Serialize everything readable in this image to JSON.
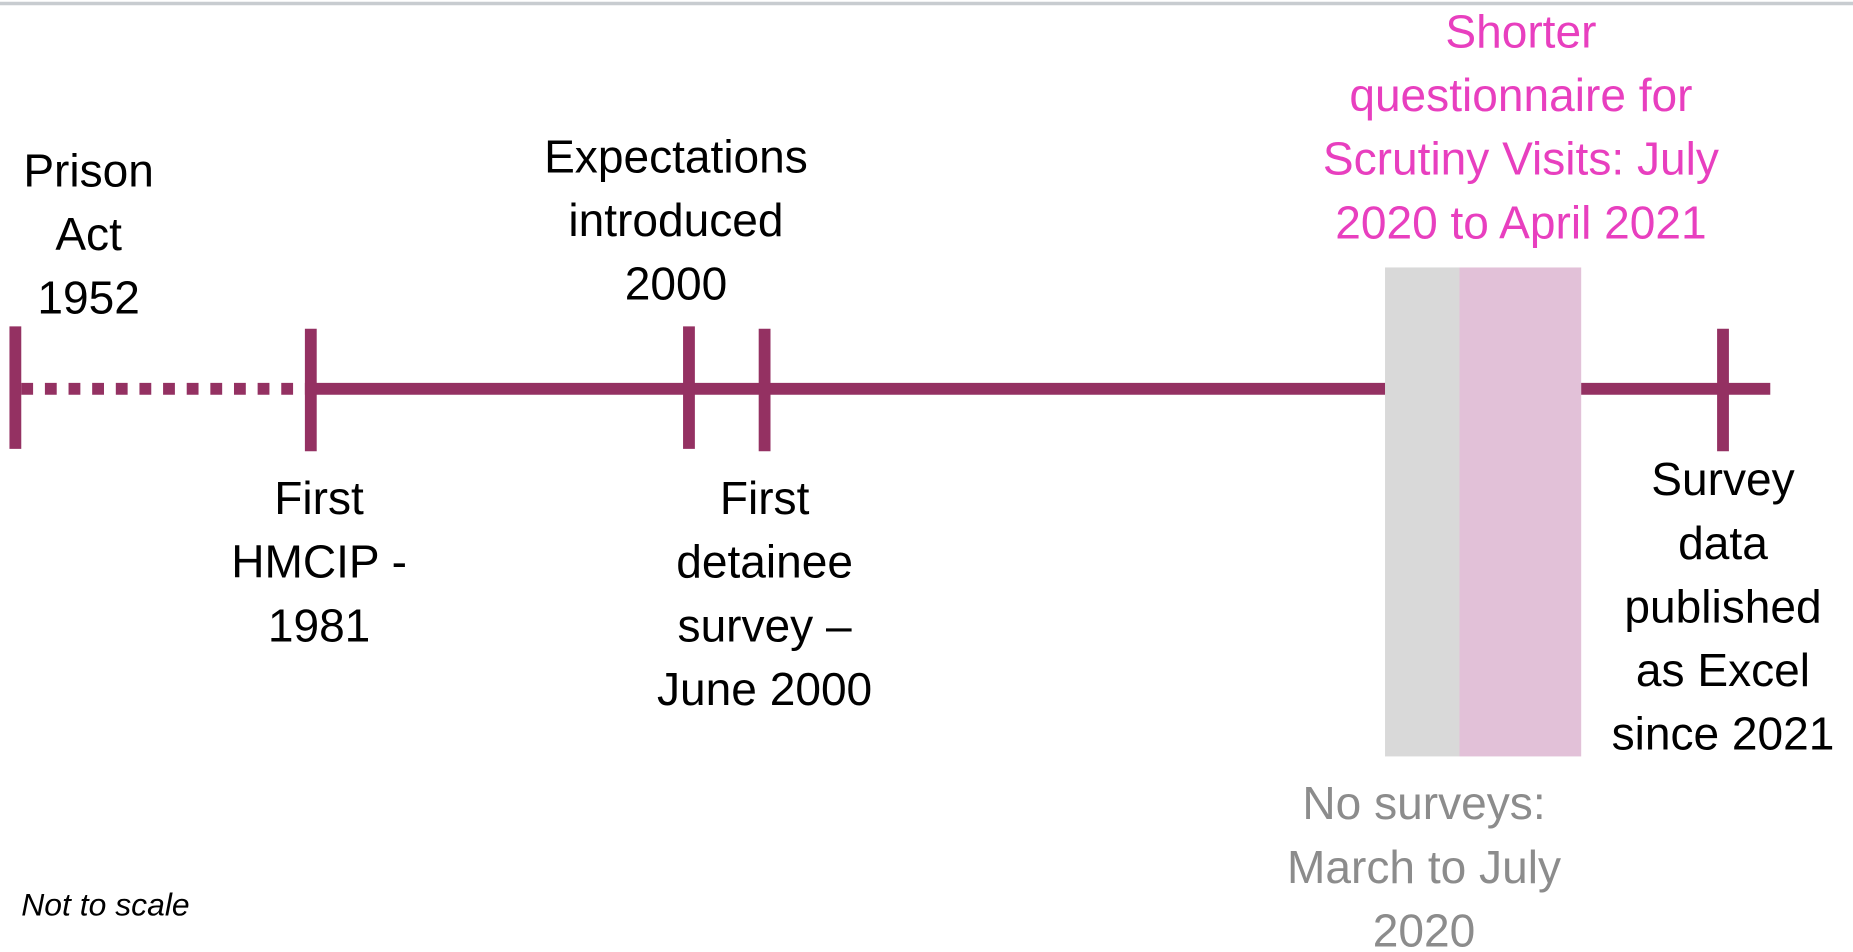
{
  "events": [
    {
      "lines": [
        "Prison",
        "Act",
        "1952"
      ]
    },
    {
      "lines": [
        "First",
        "HMCIP -",
        "1981"
      ]
    },
    {
      "lines": [
        "Expectations",
        "introduced",
        "2000"
      ]
    },
    {
      "lines": [
        "First",
        "detainee",
        "survey –",
        "June 2000"
      ]
    },
    {
      "lines": [
        "Survey",
        "data",
        "published",
        "as Excel",
        "since 2021"
      ]
    }
  ],
  "periods": [
    {
      "lines": [
        "No surveys:",
        "March to July",
        "2020"
      ]
    },
    {
      "lines": [
        "Shorter",
        "questionnaire for",
        "Scrutiny Visits: July",
        "2020 to April 2021"
      ]
    }
  ],
  "note": "Not to scale"
}
